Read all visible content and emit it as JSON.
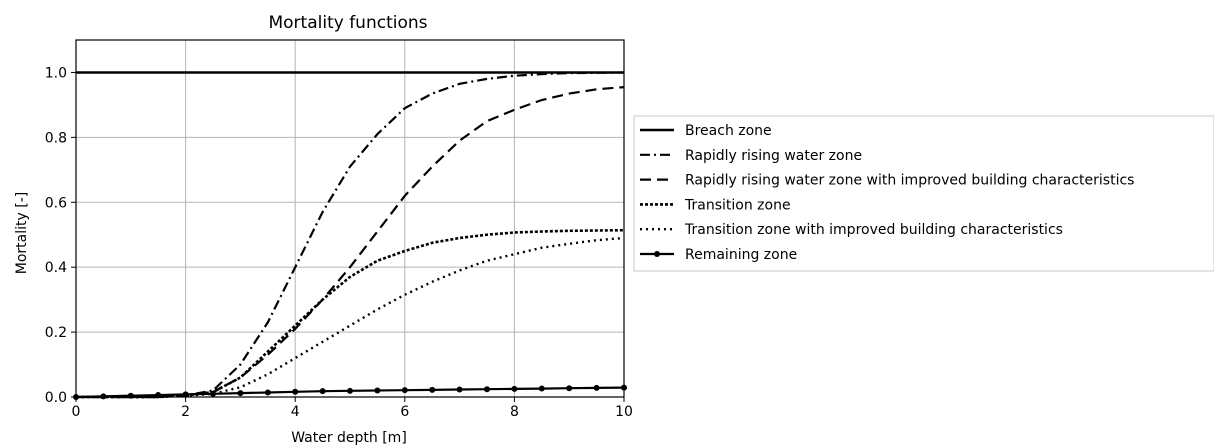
{
  "chart_data": {
    "type": "line",
    "title": "Mortality functions",
    "xlabel": "Water depth [m]",
    "ylabel": "Mortality [-]",
    "xlim": [
      0,
      10
    ],
    "ylim": [
      0,
      1.1
    ],
    "xticks": [
      0,
      2,
      4,
      6,
      8,
      10
    ],
    "yticks": [
      0.0,
      0.2,
      0.4,
      0.6,
      0.8,
      1.0
    ],
    "xtick_labels": [
      "0",
      "2",
      "4",
      "6",
      "8",
      "10"
    ],
    "ytick_labels": [
      "0.0",
      "0.2",
      "0.4",
      "0.6",
      "0.8",
      "1.0"
    ],
    "grid": true,
    "legend_position": "outside-right",
    "x": [
      0,
      0.5,
      1,
      1.5,
      2,
      2.5,
      3,
      3.5,
      4,
      4.5,
      5,
      5.5,
      6,
      6.5,
      7,
      7.5,
      8,
      8.5,
      9,
      9.5,
      10
    ],
    "series": [
      {
        "name": "Breach zone",
        "style": "solid",
        "values": [
          1,
          1,
          1,
          1,
          1,
          1,
          1,
          1,
          1,
          1,
          1,
          1,
          1,
          1,
          1,
          1,
          1,
          1,
          1,
          1,
          1
        ]
      },
      {
        "name": "Rapidly rising water zone",
        "style": "dashdot",
        "values": [
          0,
          0,
          0,
          0,
          0.005,
          0.02,
          0.1,
          0.23,
          0.4,
          0.57,
          0.71,
          0.81,
          0.89,
          0.935,
          0.965,
          0.98,
          0.99,
          0.995,
          0.998,
          0.999,
          1.0
        ]
      },
      {
        "name": "Rapidly rising water zone with improved building characteristics",
        "style": "dashed",
        "values": [
          0,
          0,
          0,
          0,
          0.005,
          0.015,
          0.06,
          0.13,
          0.21,
          0.3,
          0.4,
          0.51,
          0.62,
          0.71,
          0.79,
          0.85,
          0.885,
          0.915,
          0.935,
          0.948,
          0.955
        ]
      },
      {
        "name": "Transition zone",
        "style": "densely-dotted",
        "values": [
          0,
          0,
          0,
          0,
          0.005,
          0.015,
          0.06,
          0.14,
          0.22,
          0.3,
          0.37,
          0.42,
          0.45,
          0.475,
          0.49,
          0.5,
          0.507,
          0.51,
          0.512,
          0.513,
          0.514
        ]
      },
      {
        "name": "Transition zone with improved building characteristics",
        "style": "dotted",
        "values": [
          0,
          0,
          0,
          0,
          0.004,
          0.01,
          0.03,
          0.07,
          0.12,
          0.17,
          0.22,
          0.27,
          0.315,
          0.355,
          0.39,
          0.42,
          0.44,
          0.46,
          0.472,
          0.483,
          0.49
        ]
      },
      {
        "name": "Remaining zone",
        "style": "solid-dots",
        "values": [
          0.0,
          0.002,
          0.004,
          0.006,
          0.008,
          0.01,
          0.012,
          0.014,
          0.016,
          0.018,
          0.019,
          0.02,
          0.021,
          0.022,
          0.023,
          0.024,
          0.025,
          0.026,
          0.027,
          0.028,
          0.029
        ]
      }
    ]
  }
}
